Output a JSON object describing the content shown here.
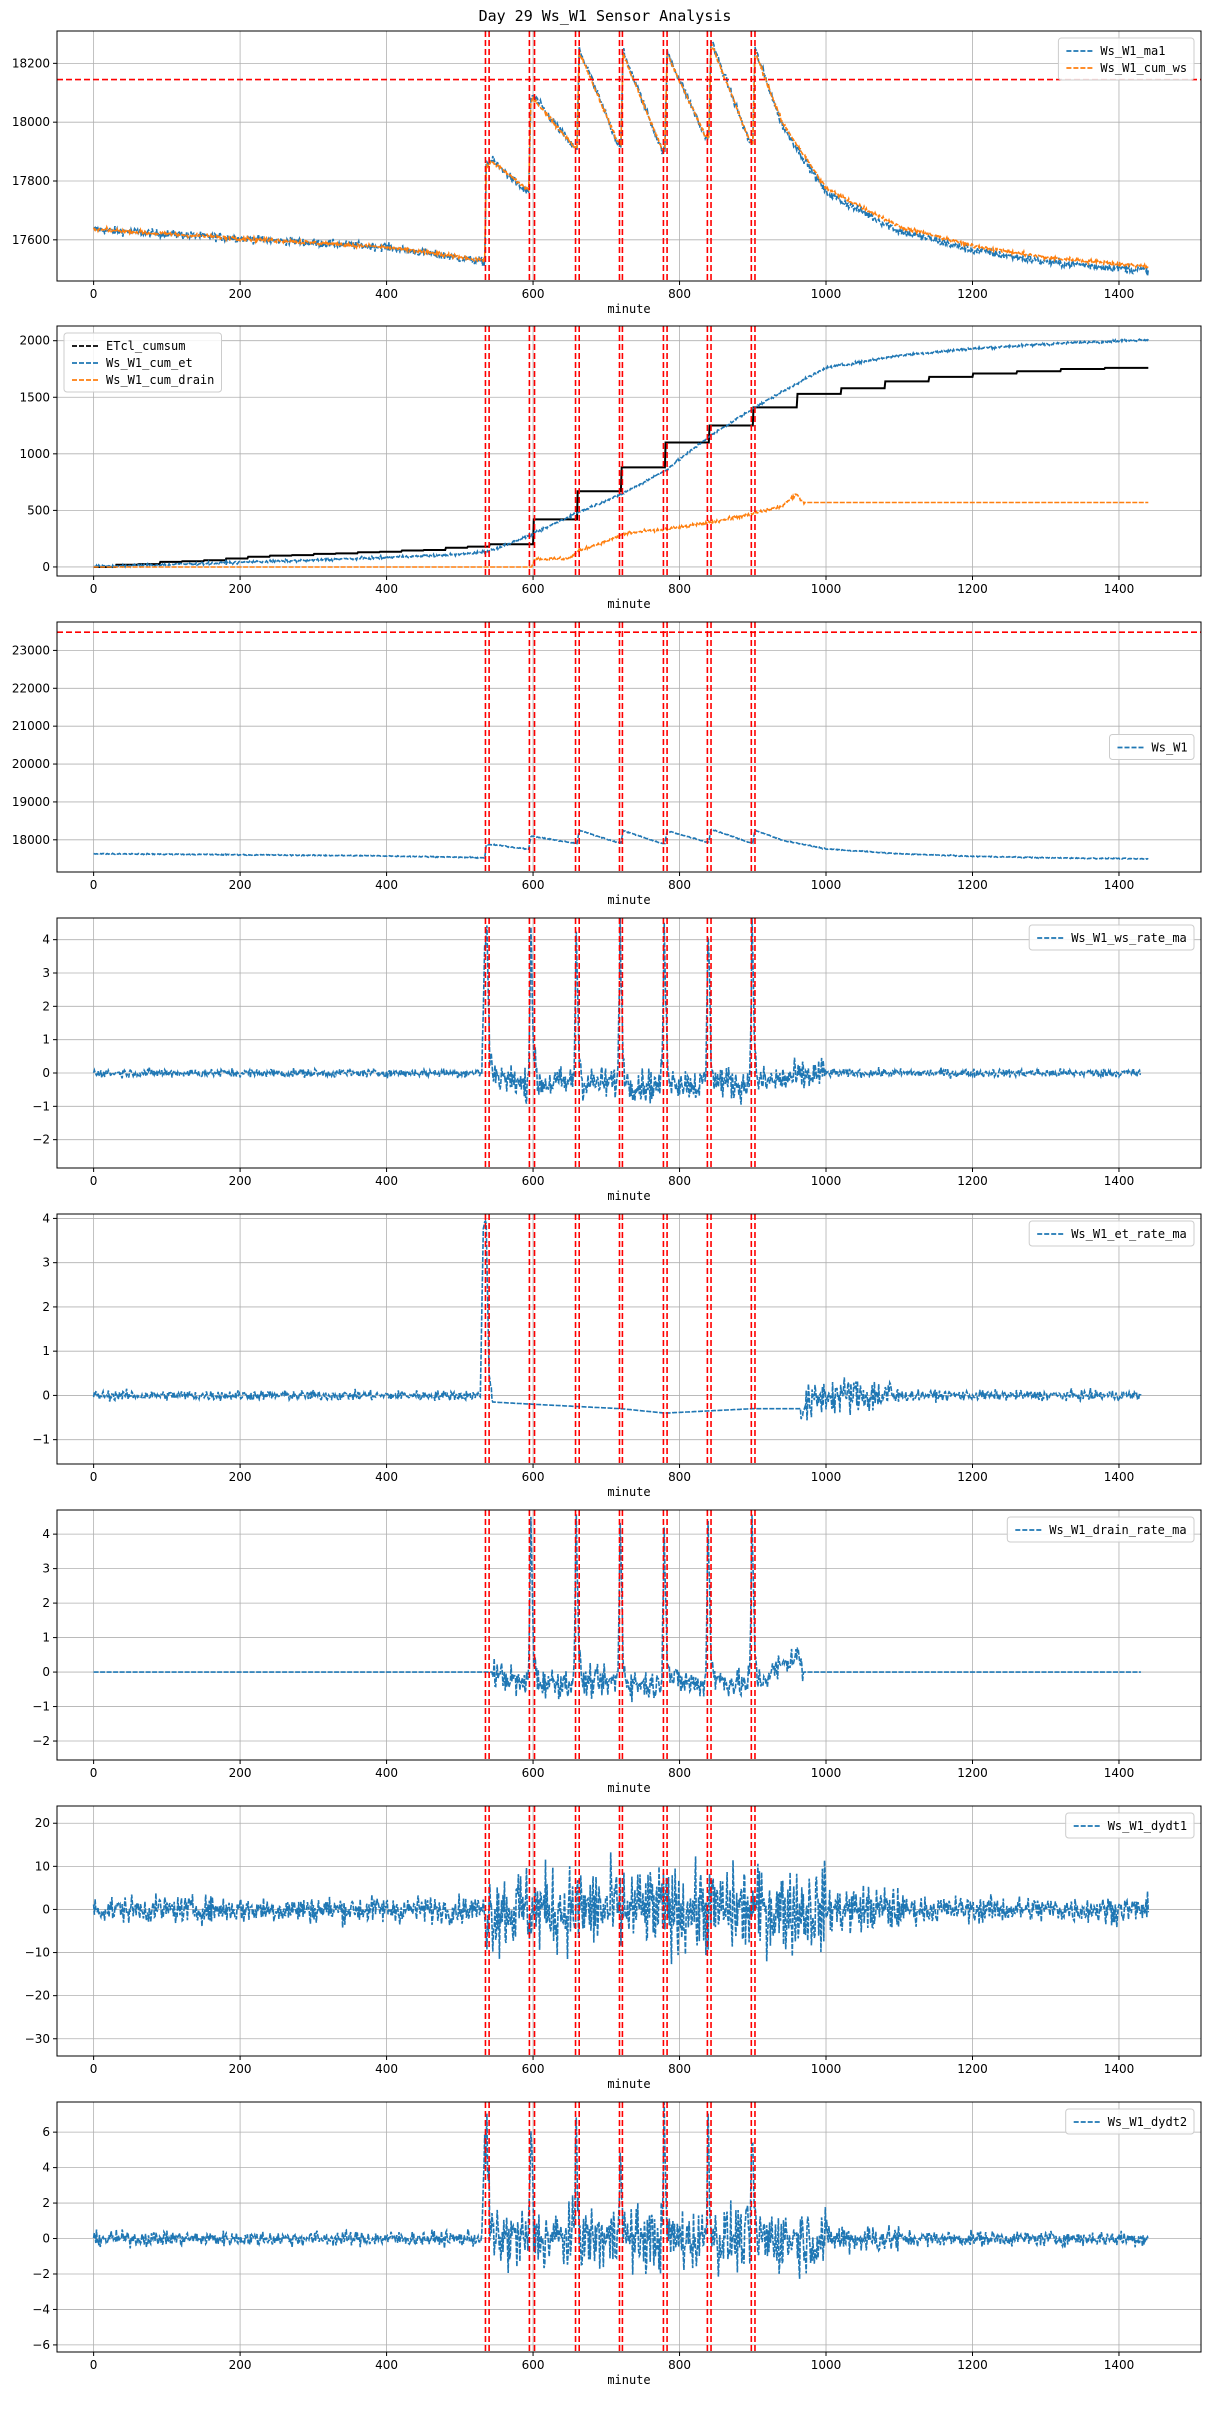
{
  "figure": {
    "title": "Day 29 Ws_W1 Sensor Analysis"
  },
  "colors": {
    "blue": "#1f77b4",
    "orange": "#ff7f0e",
    "black": "#000000",
    "red": "#ff0000",
    "grid": "#b0b0b0"
  },
  "chart_data": [
    {
      "type": "line",
      "xlabel": "minute",
      "xlim": [
        -50,
        1512
      ],
      "ylim": [
        17460,
        18310
      ],
      "xticks": [
        0,
        200,
        400,
        600,
        800,
        1000,
        1200,
        1400
      ],
      "yticks": [
        17600,
        17800,
        18000,
        18200
      ],
      "hlines": [
        18145
      ],
      "vlines": [
        535,
        540,
        595,
        602,
        658,
        663,
        718,
        722,
        778,
        783,
        838,
        843,
        898,
        903
      ],
      "legend": {
        "position": "upper-right"
      },
      "series": [
        {
          "name": "Ws_W1_ma1",
          "color": "blue",
          "style": "dashed",
          "noise": 10,
          "x": [
            0,
            200,
            400,
            534,
            536,
            545,
            585,
            594,
            597,
            600,
            655,
            660,
            663,
            715,
            720,
            723,
            775,
            780,
            783,
            835,
            840,
            843,
            895,
            900,
            903,
            940,
            1000,
            1100,
            1200,
            1300,
            1440
          ],
          "y": [
            17635,
            17605,
            17575,
            17525,
            17860,
            17870,
            17775,
            17760,
            18080,
            18090,
            17915,
            17905,
            18250,
            17930,
            17925,
            18240,
            17910,
            17900,
            18240,
            17950,
            17945,
            18280,
            17935,
            17925,
            18250,
            17990,
            17760,
            17630,
            17565,
            17525,
            17495
          ]
        },
        {
          "name": "Ws_W1_cum_ws",
          "color": "orange",
          "style": "dashed",
          "noise": 5,
          "x": [
            0,
            200,
            400,
            534,
            536,
            545,
            585,
            594,
            597,
            600,
            655,
            660,
            663,
            715,
            720,
            723,
            775,
            780,
            783,
            835,
            840,
            843,
            895,
            900,
            903,
            940,
            1000,
            1100,
            1200,
            1300,
            1440
          ],
          "y": [
            17635,
            17605,
            17575,
            17530,
            17850,
            17865,
            17785,
            17770,
            18070,
            18080,
            17920,
            17915,
            18240,
            17935,
            17930,
            18230,
            17915,
            17905,
            18230,
            17955,
            17950,
            18270,
            17940,
            17930,
            18240,
            18000,
            17775,
            17645,
            17580,
            17540,
            17510
          ]
        }
      ]
    },
    {
      "type": "line",
      "xlabel": "minute",
      "xlim": [
        -50,
        1512
      ],
      "ylim": [
        -80,
        2130
      ],
      "xticks": [
        0,
        200,
        400,
        600,
        800,
        1000,
        1200,
        1400
      ],
      "yticks": [
        0,
        500,
        1000,
        1500,
        2000
      ],
      "hlines": [],
      "vlines": [
        535,
        540,
        595,
        602,
        658,
        663,
        718,
        722,
        778,
        783,
        838,
        843,
        898,
        903
      ],
      "legend": {
        "position": "upper-left"
      },
      "series": [
        {
          "name": "ETcl_cumsum",
          "color": "black",
          "style": "dashed",
          "noise": 0,
          "step": true,
          "x": [
            0,
            30,
            60,
            90,
            120,
            150,
            180,
            210,
            240,
            270,
            300,
            330,
            360,
            390,
            420,
            450,
            480,
            510,
            540,
            600,
            660,
            720,
            780,
            840,
            900,
            960,
            1020,
            1080,
            1140,
            1200,
            1260,
            1320,
            1380,
            1440
          ],
          "y": [
            0,
            20,
            25,
            45,
            50,
            60,
            75,
            90,
            100,
            105,
            115,
            120,
            130,
            135,
            145,
            150,
            170,
            180,
            200,
            420,
            670,
            880,
            1100,
            1250,
            1410,
            1530,
            1580,
            1640,
            1680,
            1710,
            1730,
            1750,
            1760,
            1770
          ]
        },
        {
          "name": "Ws_W1_cum_et",
          "color": "blue",
          "style": "dashed",
          "noise": 8,
          "x": [
            0,
            100,
            200,
            300,
            400,
            500,
            540,
            600,
            660,
            720,
            780,
            840,
            900,
            960,
            1000,
            1100,
            1200,
            1300,
            1440
          ],
          "y": [
            5,
            20,
            40,
            60,
            85,
            110,
            140,
            290,
            480,
            640,
            850,
            1150,
            1400,
            1620,
            1760,
            1870,
            1930,
            1970,
            2010
          ]
        },
        {
          "name": "Ws_W1_cum_drain",
          "color": "orange",
          "style": "dashed",
          "noise": 10,
          "noise_range": [
            600,
            970
          ],
          "x": [
            0,
            598,
            602,
            650,
            662,
            700,
            720,
            730,
            780,
            840,
            900,
            940,
            960,
            970,
            1440
          ],
          "y": [
            0,
            0,
            70,
            75,
            140,
            230,
            280,
            300,
            330,
            390,
            470,
            540,
            640,
            570,
            570
          ]
        }
      ]
    },
    {
      "type": "line",
      "xlabel": "minute",
      "xlim": [
        -50,
        1512
      ],
      "ylim": [
        17150,
        23750
      ],
      "xticks": [
        0,
        200,
        400,
        600,
        800,
        1000,
        1200,
        1400
      ],
      "yticks": [
        18000,
        19000,
        20000,
        21000,
        22000,
        23000
      ],
      "hlines": [
        23480
      ],
      "vlines": [
        535,
        540,
        595,
        602,
        658,
        663,
        718,
        722,
        778,
        783,
        838,
        843,
        898,
        903
      ],
      "legend": {
        "position": "center-right"
      },
      "series": [
        {
          "name": "Ws_W1",
          "color": "blue",
          "style": "dashed",
          "noise": 10,
          "x": [
            0,
            200,
            400,
            534,
            536,
            545,
            585,
            594,
            597,
            600,
            655,
            660,
            663,
            715,
            720,
            723,
            775,
            780,
            783,
            835,
            840,
            843,
            895,
            900,
            903,
            940,
            1000,
            1100,
            1200,
            1300,
            1440
          ],
          "y": [
            17635,
            17605,
            17575,
            17525,
            17860,
            17870,
            17775,
            17760,
            18080,
            18090,
            17915,
            17905,
            18250,
            17930,
            17925,
            18240,
            17910,
            17900,
            18240,
            17950,
            17945,
            18280,
            17935,
            17925,
            18250,
            17990,
            17760,
            17630,
            17565,
            17525,
            17495
          ]
        }
      ]
    },
    {
      "type": "line",
      "xlabel": "minute",
      "xlim": [
        -50,
        1512
      ],
      "ylim": [
        -2.85,
        4.65
      ],
      "xticks": [
        0,
        200,
        400,
        600,
        800,
        1000,
        1200,
        1400
      ],
      "yticks": [
        -2,
        -1,
        0,
        1,
        2,
        3,
        4
      ],
      "hlines": [],
      "vlines": [
        535,
        540,
        595,
        602,
        658,
        663,
        718,
        722,
        778,
        783,
        838,
        843,
        898,
        903
      ],
      "legend": {
        "position": "upper-right"
      },
      "series": [
        {
          "name": "Ws_W1_ws_rate_ma",
          "color": "blue",
          "style": "dashed",
          "noise": 0.09,
          "noise_range_amp": [
            [
              535,
              1000,
              0.35
            ]
          ],
          "x": [
            0,
            530,
            534,
            537,
            541,
            546,
            590,
            594,
            597,
            601,
            606,
            652,
            656,
            659,
            663,
            668,
            712,
            716,
            719,
            723,
            728,
            772,
            776,
            779,
            783,
            788,
            832,
            836,
            839,
            843,
            848,
            892,
            896,
            899,
            903,
            908,
            1000,
            1430
          ],
          "y": [
            0,
            0,
            3.8,
            4.3,
            0.5,
            0,
            -0.4,
            0,
            4.4,
            0.5,
            -0.3,
            -0.3,
            0,
            4.2,
            0.5,
            -0.3,
            -0.3,
            0,
            4.3,
            0.4,
            -0.3,
            -0.4,
            0,
            4.3,
            0.5,
            -0.2,
            -0.4,
            0,
            4.4,
            0.5,
            -0.2,
            -0.4,
            0,
            4.3,
            0.5,
            -0.3,
            0,
            0
          ]
        }
      ]
    },
    {
      "type": "line",
      "xlabel": "minute",
      "xlim": [
        -50,
        1512
      ],
      "ylim": [
        -1.55,
        4.1
      ],
      "xticks": [
        0,
        200,
        400,
        600,
        800,
        1000,
        1200,
        1400
      ],
      "yticks": [
        -1,
        0,
        1,
        2,
        3,
        4
      ],
      "hlines": [],
      "vlines": [
        535,
        540,
        595,
        602,
        658,
        663,
        718,
        722,
        778,
        783,
        838,
        843,
        898,
        903
      ],
      "legend": {
        "position": "upper-right"
      },
      "series": [
        {
          "name": "Ws_W1_et_rate_ma",
          "color": "blue",
          "style": "dashed",
          "noise": 0.08,
          "noise_range_amp": [
            [
              545,
              965,
              0.0
            ],
            [
              965,
              1100,
              0.3
            ]
          ],
          "x": [
            0,
            528,
            532,
            536,
            540,
            545,
            600,
            660,
            720,
            780,
            840,
            900,
            965,
            1000,
            1430
          ],
          "y": [
            0,
            0,
            3.8,
            3.9,
            0.5,
            -0.15,
            -0.2,
            -0.25,
            -0.3,
            -0.4,
            -0.35,
            -0.3,
            -0.3,
            0,
            0
          ]
        }
      ]
    },
    {
      "type": "line",
      "xlabel": "minute",
      "xlim": [
        -50,
        1512
      ],
      "ylim": [
        -2.55,
        4.7
      ],
      "xticks": [
        0,
        200,
        400,
        600,
        800,
        1000,
        1200,
        1400
      ],
      "yticks": [
        -2,
        -1,
        0,
        1,
        2,
        3,
        4
      ],
      "hlines": [],
      "vlines": [
        535,
        540,
        595,
        602,
        658,
        663,
        718,
        722,
        778,
        783,
        838,
        843,
        898,
        903
      ],
      "legend": {
        "position": "upper-right"
      },
      "series": [
        {
          "name": "Ws_W1_drain_rate_ma",
          "color": "blue",
          "style": "dashed",
          "noise": 0,
          "noise_range_amp": [
            [
              545,
              970,
              0.3
            ]
          ],
          "x": [
            0,
            545,
            590,
            594,
            597,
            601,
            606,
            652,
            656,
            659,
            663,
            668,
            712,
            716,
            719,
            723,
            728,
            772,
            776,
            779,
            783,
            788,
            832,
            836,
            839,
            843,
            848,
            892,
            896,
            899,
            903,
            908,
            960,
            970,
            1430
          ],
          "y": [
            0,
            0,
            -0.4,
            0,
            4.4,
            0.5,
            -0.3,
            -0.3,
            0,
            4.2,
            0.5,
            -0.3,
            -0.3,
            0,
            4.3,
            0.4,
            -0.3,
            -0.4,
            0,
            4.3,
            0.5,
            -0.2,
            -0.4,
            0,
            4.4,
            0.5,
            -0.2,
            -0.4,
            0,
            4.3,
            0.5,
            -0.3,
            0.5,
            0,
            0
          ]
        }
      ]
    },
    {
      "type": "line",
      "xlabel": "minute",
      "xlim": [
        -50,
        1512
      ],
      "ylim": [
        -34,
        24
      ],
      "xticks": [
        0,
        200,
        400,
        600,
        800,
        1000,
        1200,
        1400
      ],
      "yticks": [
        -30,
        -20,
        -10,
        0,
        10,
        20
      ],
      "hlines": [],
      "vlines": [
        535,
        540,
        595,
        602,
        658,
        663,
        718,
        722,
        778,
        783,
        838,
        843,
        898,
        903
      ],
      "legend": {
        "position": "upper-right"
      },
      "series": [
        {
          "name": "Ws_W1_dydt1",
          "color": "blue",
          "style": "dashed",
          "noise": 2.2,
          "noise_range_amp": [
            [
              535,
              1000,
              7.0
            ],
            [
              1000,
              1100,
              4.0
            ]
          ],
          "x": [
            0,
            1440
          ],
          "y": [
            0,
            0
          ]
        }
      ]
    },
    {
      "type": "line",
      "xlabel": "minute",
      "xlim": [
        -50,
        1512
      ],
      "ylim": [
        -6.4,
        7.7
      ],
      "xticks": [
        0,
        200,
        400,
        600,
        800,
        1000,
        1200,
        1400
      ],
      "yticks": [
        -6,
        -4,
        -2,
        0,
        2,
        4,
        6
      ],
      "hlines": [],
      "vlines": [
        535,
        540,
        595,
        602,
        658,
        663,
        718,
        722,
        778,
        783,
        838,
        843,
        898,
        903
      ],
      "legend": {
        "position": "upper-right"
      },
      "series": [
        {
          "name": "Ws_W1_dydt2",
          "color": "blue",
          "style": "dashed",
          "noise": 0.3,
          "noise_range_amp": [
            [
              535,
              1000,
              1.3
            ],
            [
              1000,
              1100,
              0.6
            ]
          ],
          "x": [
            0,
            530,
            534,
            537,
            541,
            546,
            594,
            597,
            601,
            606,
            656,
            659,
            663,
            668,
            716,
            719,
            723,
            728,
            776,
            779,
            783,
            788,
            836,
            839,
            843,
            848,
            896,
            899,
            903,
            908,
            1440
          ],
          "y": [
            0,
            0,
            5.5,
            6.2,
            0.5,
            0,
            0,
            6.0,
            0.5,
            0,
            0,
            5.8,
            0.4,
            0,
            0,
            6.3,
            0.4,
            0,
            0,
            6.0,
            0.5,
            0,
            0,
            6.7,
            0.5,
            0,
            0,
            5.9,
            0.4,
            0,
            0
          ]
        }
      ]
    }
  ]
}
